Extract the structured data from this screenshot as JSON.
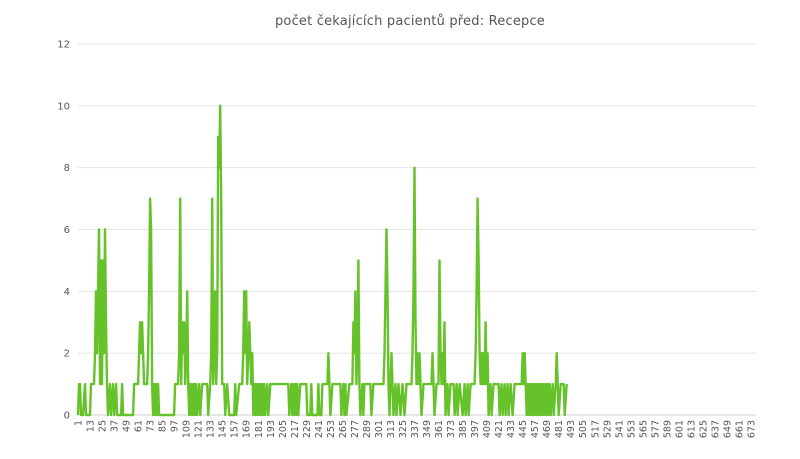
{
  "chart_data": {
    "type": "line",
    "title": "počet čekajících pacientů před:  Recepce",
    "xlabel": "",
    "ylabel": "",
    "ylim": [
      0,
      12
    ],
    "yticks": [
      0,
      2,
      4,
      6,
      8,
      10,
      12
    ],
    "xlim": [
      1,
      678
    ],
    "xticks": [
      1,
      13,
      25,
      37,
      49,
      61,
      73,
      85,
      97,
      109,
      121,
      133,
      145,
      157,
      169,
      181,
      193,
      205,
      217,
      229,
      241,
      253,
      265,
      277,
      289,
      301,
      313,
      325,
      337,
      349,
      361,
      373,
      385,
      397,
      409,
      421,
      433,
      445,
      457,
      469,
      481,
      493,
      505,
      517,
      529,
      541,
      553,
      565,
      577,
      589,
      601,
      613,
      625,
      637,
      649,
      661,
      673
    ],
    "grid": true,
    "line_color": "#66c22a",
    "series": [
      {
        "points": [
          [
            1,
            0
          ],
          [
            2,
            1
          ],
          [
            3,
            1
          ],
          [
            4,
            0
          ],
          [
            6,
            0
          ],
          [
            8,
            1
          ],
          [
            9,
            0
          ],
          [
            13,
            0
          ],
          [
            14,
            1
          ],
          [
            17,
            1
          ],
          [
            18,
            2
          ],
          [
            19,
            4
          ],
          [
            20,
            2
          ],
          [
            21,
            4
          ],
          [
            22,
            6
          ],
          [
            23,
            1
          ],
          [
            24,
            5
          ],
          [
            25,
            1
          ],
          [
            26,
            5
          ],
          [
            27,
            2
          ],
          [
            28,
            6
          ],
          [
            29,
            3
          ],
          [
            30,
            1
          ],
          [
            31,
            0
          ],
          [
            33,
            1
          ],
          [
            34,
            0
          ],
          [
            36,
            1
          ],
          [
            37,
            0
          ],
          [
            39,
            1
          ],
          [
            40,
            0
          ],
          [
            44,
            0
          ],
          [
            45,
            1
          ],
          [
            46,
            0
          ],
          [
            56,
            0
          ],
          [
            57,
            1
          ],
          [
            61,
            1
          ],
          [
            62,
            2
          ],
          [
            63,
            3
          ],
          [
            64,
            2
          ],
          [
            65,
            3
          ],
          [
            66,
            2
          ],
          [
            67,
            1
          ],
          [
            70,
            1
          ],
          [
            71,
            2
          ],
          [
            72,
            4
          ],
          [
            73,
            7
          ],
          [
            74,
            6
          ],
          [
            75,
            1
          ],
          [
            76,
            0
          ],
          [
            77,
            1
          ],
          [
            78,
            0
          ],
          [
            79,
            1
          ],
          [
            80,
            0
          ],
          [
            81,
            1
          ],
          [
            82,
            0
          ],
          [
            97,
            0
          ],
          [
            98,
            1
          ],
          [
            101,
            1
          ],
          [
            102,
            2
          ],
          [
            103,
            7
          ],
          [
            104,
            1
          ],
          [
            105,
            3
          ],
          [
            106,
            2
          ],
          [
            107,
            3
          ],
          [
            108,
            1
          ],
          [
            109,
            2
          ],
          [
            110,
            4
          ],
          [
            111,
            1
          ],
          [
            112,
            0
          ],
          [
            113,
            1
          ],
          [
            114,
            0
          ],
          [
            115,
            1
          ],
          [
            116,
            0
          ],
          [
            117,
            1
          ],
          [
            118,
            0
          ],
          [
            119,
            1
          ],
          [
            120,
            0
          ],
          [
            122,
            1
          ],
          [
            123,
            0
          ],
          [
            125,
            1
          ],
          [
            130,
            1
          ],
          [
            131,
            0
          ],
          [
            133,
            1
          ],
          [
            134,
            2
          ],
          [
            135,
            7
          ],
          [
            136,
            1
          ],
          [
            137,
            2
          ],
          [
            138,
            4
          ],
          [
            139,
            1
          ],
          [
            140,
            2
          ],
          [
            141,
            9
          ],
          [
            142,
            8
          ],
          [
            143,
            10
          ],
          [
            144,
            7
          ],
          [
            145,
            1
          ],
          [
            147,
            1
          ],
          [
            148,
            0
          ],
          [
            150,
            1
          ],
          [
            152,
            0
          ],
          [
            157,
            0
          ],
          [
            158,
            1
          ],
          [
            159,
            0
          ],
          [
            162,
            1
          ],
          [
            165,
            1
          ],
          [
            166,
            2
          ],
          [
            167,
            4
          ],
          [
            168,
            2
          ],
          [
            169,
            4
          ],
          [
            170,
            1
          ],
          [
            171,
            2
          ],
          [
            172,
            3
          ],
          [
            173,
            2
          ],
          [
            174,
            1
          ],
          [
            175,
            2
          ],
          [
            176,
            0
          ],
          [
            177,
            1
          ],
          [
            178,
            0
          ],
          [
            179,
            1
          ],
          [
            180,
            0
          ],
          [
            181,
            1
          ],
          [
            182,
            0
          ],
          [
            183,
            1
          ],
          [
            184,
            0
          ],
          [
            185,
            1
          ],
          [
            186,
            0
          ],
          [
            187,
            1
          ],
          [
            188,
            0
          ],
          [
            190,
            1
          ],
          [
            191,
            0
          ],
          [
            193,
            1
          ],
          [
            211,
            1
          ],
          [
            212,
            0
          ],
          [
            214,
            1
          ],
          [
            215,
            0
          ],
          [
            216,
            1
          ],
          [
            217,
            0
          ],
          [
            218,
            1
          ],
          [
            219,
            0
          ],
          [
            220,
            1
          ],
          [
            221,
            0
          ],
          [
            223,
            1
          ],
          [
            229,
            1
          ],
          [
            230,
            0
          ],
          [
            233,
            0
          ],
          [
            234,
            1
          ],
          [
            235,
            0
          ],
          [
            240,
            0
          ],
          [
            241,
            1
          ],
          [
            242,
            0
          ],
          [
            244,
            0
          ],
          [
            245,
            1
          ],
          [
            250,
            1
          ],
          [
            251,
            2
          ],
          [
            252,
            1
          ],
          [
            253,
            0
          ],
          [
            255,
            1
          ],
          [
            263,
            1
          ],
          [
            264,
            0
          ],
          [
            266,
            1
          ],
          [
            267,
            0
          ],
          [
            268,
            1
          ],
          [
            269,
            0
          ],
          [
            272,
            1
          ],
          [
            275,
            1
          ],
          [
            276,
            3
          ],
          [
            277,
            2
          ],
          [
            278,
            4
          ],
          [
            279,
            1
          ],
          [
            280,
            2
          ],
          [
            281,
            5
          ],
          [
            282,
            1
          ],
          [
            283,
            0
          ],
          [
            285,
            1
          ],
          [
            286,
            0
          ],
          [
            287,
            1
          ],
          [
            293,
            1
          ],
          [
            294,
            0
          ],
          [
            296,
            1
          ],
          [
            306,
            1
          ],
          [
            307,
            2
          ],
          [
            308,
            4
          ],
          [
            309,
            6
          ],
          [
            310,
            4
          ],
          [
            311,
            1
          ],
          [
            312,
            0
          ],
          [
            313,
            1
          ],
          [
            314,
            2
          ],
          [
            315,
            1
          ],
          [
            316,
            0
          ],
          [
            318,
            1
          ],
          [
            319,
            0
          ],
          [
            321,
            1
          ],
          [
            323,
            0
          ],
          [
            325,
            1
          ],
          [
            327,
            0
          ],
          [
            329,
            1
          ],
          [
            334,
            1
          ],
          [
            335,
            2
          ],
          [
            336,
            4
          ],
          [
            337,
            8
          ],
          [
            338,
            3
          ],
          [
            339,
            1
          ],
          [
            340,
            2
          ],
          [
            341,
            1
          ],
          [
            342,
            2
          ],
          [
            343,
            1
          ],
          [
            344,
            0
          ],
          [
            346,
            1
          ],
          [
            354,
            1
          ],
          [
            355,
            2
          ],
          [
            356,
            1
          ],
          [
            357,
            0
          ],
          [
            359,
            1
          ],
          [
            361,
            1
          ],
          [
            362,
            5
          ],
          [
            363,
            2
          ],
          [
            364,
            1
          ],
          [
            365,
            2
          ],
          [
            366,
            1
          ],
          [
            367,
            3
          ],
          [
            368,
            0
          ],
          [
            370,
            1
          ],
          [
            371,
            0
          ],
          [
            373,
            1
          ],
          [
            376,
            1
          ],
          [
            377,
            0
          ],
          [
            379,
            1
          ],
          [
            380,
            0
          ],
          [
            382,
            1
          ],
          [
            385,
            0
          ],
          [
            387,
            1
          ],
          [
            388,
            0
          ],
          [
            390,
            1
          ],
          [
            391,
            0
          ],
          [
            393,
            1
          ],
          [
            397,
            1
          ],
          [
            398,
            2
          ],
          [
            399,
            4
          ],
          [
            400,
            7
          ],
          [
            401,
            5
          ],
          [
            402,
            2
          ],
          [
            403,
            1
          ],
          [
            404,
            2
          ],
          [
            405,
            1
          ],
          [
            406,
            2
          ],
          [
            407,
            1
          ],
          [
            408,
            3
          ],
          [
            409,
            1
          ],
          [
            410,
            2
          ],
          [
            411,
            0
          ],
          [
            413,
            1
          ],
          [
            414,
            0
          ],
          [
            416,
            1
          ],
          [
            421,
            1
          ],
          [
            422,
            0
          ],
          [
            424,
            1
          ],
          [
            425,
            0
          ],
          [
            427,
            1
          ],
          [
            428,
            0
          ],
          [
            430,
            1
          ],
          [
            431,
            0
          ],
          [
            433,
            1
          ],
          [
            435,
            0
          ],
          [
            437,
            1
          ],
          [
            444,
            1
          ],
          [
            445,
            2
          ],
          [
            446,
            1
          ],
          [
            447,
            2
          ],
          [
            448,
            1
          ],
          [
            449,
            0
          ],
          [
            450,
            1
          ],
          [
            451,
            0
          ],
          [
            452,
            1
          ],
          [
            453,
            0
          ],
          [
            454,
            1
          ],
          [
            455,
            0
          ],
          [
            456,
            1
          ],
          [
            457,
            0
          ],
          [
            458,
            1
          ],
          [
            459,
            0
          ],
          [
            460,
            1
          ],
          [
            461,
            0
          ],
          [
            462,
            1
          ],
          [
            463,
            0
          ],
          [
            464,
            1
          ],
          [
            465,
            0
          ],
          [
            466,
            1
          ],
          [
            467,
            0
          ],
          [
            468,
            1
          ],
          [
            469,
            0
          ],
          [
            470,
            1
          ],
          [
            471,
            0
          ],
          [
            472,
            1
          ],
          [
            473,
            0
          ],
          [
            475,
            1
          ],
          [
            476,
            0
          ],
          [
            478,
            1
          ],
          [
            479,
            2
          ],
          [
            480,
            1
          ],
          [
            481,
            0
          ],
          [
            483,
            1
          ],
          [
            485,
            1
          ],
          [
            486,
            1
          ],
          [
            487,
            0
          ],
          [
            489,
            1
          ]
        ]
      }
    ]
  }
}
